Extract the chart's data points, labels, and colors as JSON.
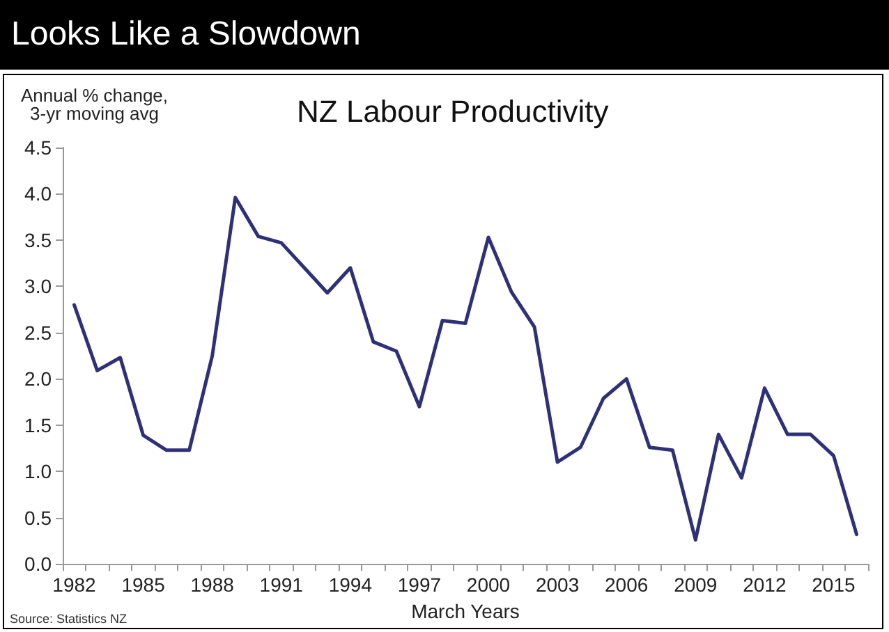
{
  "chart_data": {
    "type": "line",
    "subtitle": "Looks Like a Slowdown",
    "title": "NZ Labour Productivity",
    "ylabel": "Annual % change,\n3-yr moving avg",
    "xlabel": "March Years",
    "annotations": [
      "Source: Statistics NZ"
    ],
    "categories": [
      "1982",
      null,
      null,
      "1985",
      null,
      null,
      "1988",
      null,
      null,
      "1991",
      null,
      null,
      "1994",
      null,
      null,
      "1997",
      null,
      null,
      "2000",
      null,
      null,
      "2003",
      null,
      null,
      "2006",
      null,
      null,
      "2009",
      null,
      null,
      "2012",
      null,
      null,
      "2015",
      null
    ],
    "series": [
      {
        "color": "#2e3078",
        "values": [
          2.8,
          2.09,
          2.23,
          1.39,
          1.23,
          1.23,
          2.25,
          3.96,
          3.54,
          3.47,
          3.2,
          2.93,
          3.2,
          2.4,
          2.3,
          1.7,
          2.63,
          2.6,
          3.53,
          2.94,
          2.56,
          1.1,
          1.26,
          1.79,
          2.0,
          1.26,
          1.23,
          0.26,
          1.4,
          0.93,
          1.9,
          1.4,
          1.4,
          1.17,
          0.32
        ]
      }
    ],
    "ylim": [
      0,
      4.5
    ],
    "yticks": [
      {
        "value": 0,
        "label": "0.0"
      },
      {
        "value": 0.5,
        "label": "0.5"
      },
      {
        "value": 1,
        "label": "1.0"
      },
      {
        "value": 1.5,
        "label": "1.5"
      },
      {
        "value": 2,
        "label": "2.0"
      },
      {
        "value": 2.5,
        "label": "2.5"
      },
      {
        "value": 3,
        "label": "3.0"
      },
      {
        "value": 3.5,
        "label": "3.5"
      },
      {
        "value": 4,
        "label": "4.0"
      },
      {
        "value": 4.5,
        "label": "4.5"
      }
    ],
    "grid": false,
    "marker": "none",
    "line_style": "solid"
  }
}
